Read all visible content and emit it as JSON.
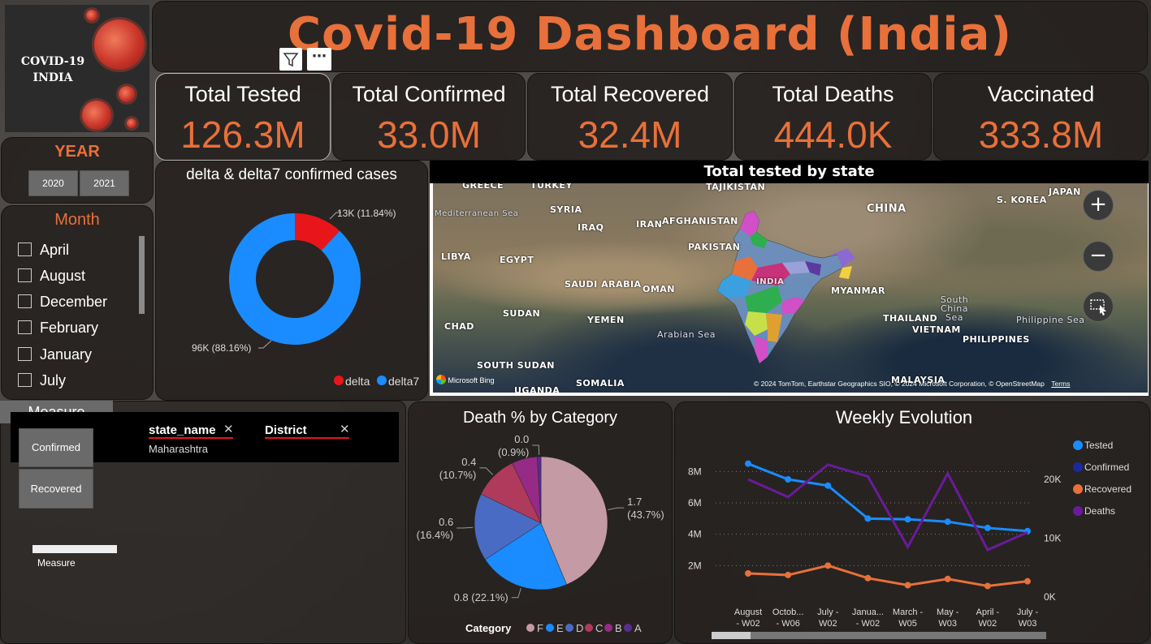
{
  "logo": {
    "line1": "COVID-19",
    "line2": "INDIA"
  },
  "title": "Covid-19 Dashboard (India)",
  "kpis": [
    {
      "label": "Total Tested",
      "value": "126.3M"
    },
    {
      "label": "Total Confirmed",
      "value": "33.0M"
    },
    {
      "label": "Total Recovered",
      "value": "32.4M"
    },
    {
      "label": "Total Deaths",
      "value": "444.0K"
    },
    {
      "label": "Vaccinated",
      "value": "333.8M"
    }
  ],
  "visual_header": {
    "filter_icon": "filter-icon",
    "more_icon": "more-options-icon"
  },
  "year": {
    "title": "YEAR",
    "options": [
      "2020",
      "2021"
    ]
  },
  "month": {
    "title": "Month",
    "items": [
      "April",
      "August",
      "December",
      "February",
      "January",
      "July"
    ]
  },
  "donut": {
    "title": "delta & delta7 confirmed cases",
    "label_small": "13K (11.84%)",
    "label_large": "96K (88.16%)",
    "legend": [
      "delta",
      "delta7"
    ],
    "colors": [
      "#e8161b",
      "#1a8cff"
    ]
  },
  "map": {
    "title": "Total tested by state",
    "labels": [
      "GREECE",
      "TURKEY",
      "TAJIKISTAN",
      "CHINA",
      "S. KOREA",
      "JAPAN",
      "SYRIA",
      "IRAQ",
      "IRAN",
      "AFGHANISTAN",
      "PAKISTAN",
      "INDIA",
      "LIBYA",
      "EGYPT",
      "SAUDI ARABIA",
      "OMAN",
      "MYANMAR",
      "SUDAN",
      "YEMEN",
      "CHAD",
      "THAILAND",
      "VIETNAM",
      "PHILIPPINES",
      "SOUTH SUDAN",
      "SOMALIA",
      "UGANDA",
      "MALAYSIA"
    ],
    "seas": [
      "Mediterranean Sea",
      "Arabian Sea",
      "South China Sea",
      "Philippine Sea"
    ],
    "brand": "Microsoft Bing",
    "attribution": "© 2024 TomTom, Earthstar Geographics SIO, © 2024 Microsoft Corporation, © OpenStreetMap",
    "terms": "Terms",
    "zoom_in": "+",
    "zoom_out": "−"
  },
  "measure": {
    "tab": "Measure",
    "buttons": [
      "Confirmed",
      "Recovered"
    ],
    "slider_label": "Measure"
  },
  "filters": [
    {
      "field": "state_name",
      "value": "Maharashtra"
    },
    {
      "field": "District",
      "value": ""
    }
  ],
  "pie": {
    "title": "Death % by Category",
    "legend_title": "Category",
    "legend": [
      "F",
      "E",
      "D",
      "C",
      "B",
      "A"
    ],
    "colors": [
      "#c49aa5",
      "#1a8cff",
      "#4a6bc4",
      "#b03a5b",
      "#952b86",
      "#5a2d91"
    ]
  },
  "weekly": {
    "title": "Weekly Evolution",
    "legend": [
      {
        "name": "Tested",
        "color": "#1a8cff"
      },
      {
        "name": "Confirmed",
        "color": "#1b2a9c"
      },
      {
        "name": "Recovered",
        "color": "#e8703a"
      },
      {
        "name": "Deaths",
        "color": "#6a1b9a"
      }
    ]
  },
  "chart_data": [
    {
      "type": "pie",
      "title": "delta & delta7 confirmed cases",
      "categories": [
        "delta",
        "delta7"
      ],
      "values": [
        13,
        96
      ],
      "percent": [
        11.84,
        88.16
      ],
      "legend": "bottom-right"
    },
    {
      "type": "pie",
      "title": "Death % by Category",
      "categories": [
        "F",
        "E",
        "D",
        "C",
        "B",
        "A"
      ],
      "values": [
        1.7,
        0.8,
        0.6,
        0.4,
        0.3,
        0.0
      ],
      "percent": [
        43.7,
        22.1,
        16.4,
        10.7,
        6.2,
        0.9
      ],
      "labels": [
        "1.7\n(43.7%)",
        "0.8 (22.1%)",
        "0.6\n(16.4%)",
        "0.4\n(10.7%)",
        "",
        "0.0\n(0.9%)"
      ],
      "legend": "bottom"
    },
    {
      "type": "line",
      "title": "Weekly Evolution",
      "categories": [
        "August - W02",
        "October - W06",
        "July - W02",
        "January - W02",
        "March - W05",
        "May - W03",
        "April - W02",
        "July - W03"
      ],
      "category_labels": [
        [
          "August",
          "- W02"
        ],
        [
          "Octob...",
          "- W06"
        ],
        [
          "July -",
          "W02"
        ],
        [
          "Janua...",
          "- W02"
        ],
        [
          "March -",
          "W05"
        ],
        [
          "May -",
          "W03"
        ],
        [
          "April -",
          "W02"
        ],
        [
          "July -",
          "W03"
        ]
      ],
      "yticks_left": [
        "2M",
        "4M",
        "6M",
        "8M"
      ],
      "yticks_right": [
        "0K",
        "10K",
        "20K"
      ],
      "ylim_left": [
        0,
        9000000
      ],
      "ylim_right": [
        0,
        24000
      ],
      "series": [
        {
          "name": "Tested",
          "axis": "left",
          "values": [
            8500000,
            7500000,
            7100000,
            5000000,
            4950000,
            4800000,
            4400000,
            4200000
          ]
        },
        {
          "name": "Recovered",
          "axis": "left",
          "values": [
            1500000,
            1400000,
            2000000,
            1200000,
            750000,
            1150000,
            700000,
            1000000
          ]
        },
        {
          "name": "Deaths",
          "axis": "right",
          "values": [
            20000,
            17000,
            22500,
            20500,
            8500,
            21000,
            8000,
            11000
          ]
        }
      ],
      "legend": "right"
    }
  ]
}
